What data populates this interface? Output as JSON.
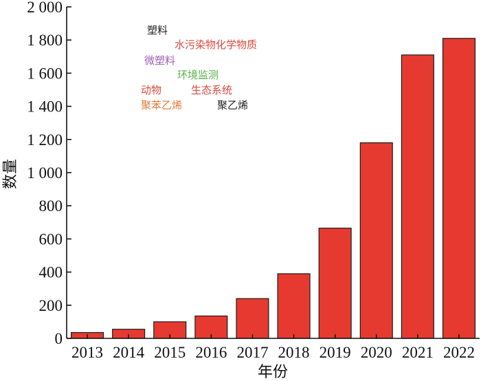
{
  "chart_data": {
    "type": "bar",
    "categories": [
      "2013",
      "2014",
      "2015",
      "2016",
      "2017",
      "2018",
      "2019",
      "2020",
      "2021",
      "2022"
    ],
    "values": [
      35,
      55,
      100,
      135,
      240,
      390,
      665,
      1180,
      1710,
      1810
    ],
    "xlabel": "年份",
    "ylabel": "数量",
    "ylim": [
      0,
      2000
    ],
    "yticks": [
      0,
      200,
      400,
      600,
      800,
      1000,
      1200,
      1400,
      1600,
      1800,
      2000
    ],
    "ytick_labels": [
      "0",
      "200",
      "400",
      "600",
      "800",
      "1 000",
      "1 200",
      "1 400",
      "1 600",
      "1 800",
      "2 000"
    ],
    "bar_color": "#e63a31",
    "grid": false,
    "annotations": [
      {
        "text": "塑料",
        "color": "#222222"
      },
      {
        "text": "水污染物化学物质",
        "color": "#d94a3c"
      },
      {
        "text": "微塑料",
        "color": "#a05fb0"
      },
      {
        "text": "环境监测",
        "color": "#58b146"
      },
      {
        "text": "动物",
        "color": "#d94a3c"
      },
      {
        "text": "生态系统",
        "color": "#d94a3c"
      },
      {
        "text": "聚苯乙烯",
        "color": "#e07a3a"
      },
      {
        "text": "聚乙烯",
        "color": "#222222"
      }
    ]
  }
}
